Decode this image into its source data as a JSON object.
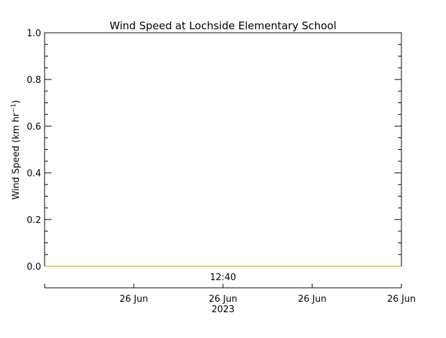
{
  "chart_data": {
    "type": "line",
    "title": "Wind Speed at Lochside Elementary School",
    "ylabel_main": "Wind Speed (km hr",
    "ylabel_sup": "−1",
    "ylabel_close": ")",
    "xlabel_year": "2023",
    "x_time_label": "12:40",
    "x_tick_labels": [
      "26 Jun",
      "26 Jun",
      "26 Jun",
      "26 Jun"
    ],
    "y_tick_labels": [
      "0.0",
      "0.2",
      "0.4",
      "0.6",
      "0.8",
      "1.0"
    ],
    "ylim": [
      0,
      1
    ],
    "series": [
      {
        "values": [
          0,
          0
        ],
        "color": "#e8a53c"
      }
    ],
    "grid": false
  }
}
